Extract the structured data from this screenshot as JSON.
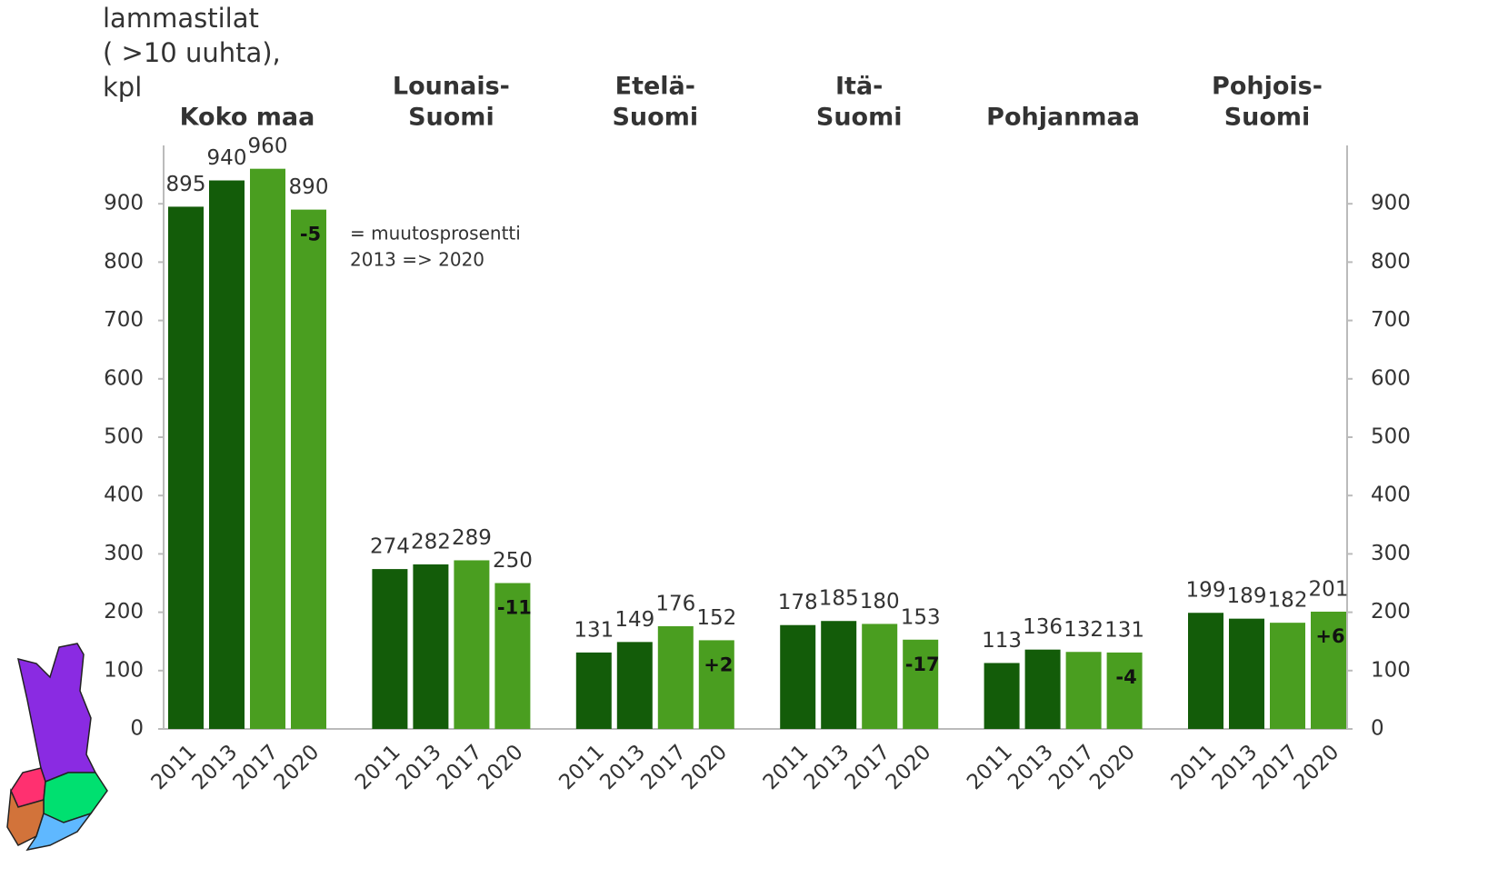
{
  "chart_data": {
    "type": "bar",
    "y_label": [
      "lammastilat",
      "( >10 uuhta),",
      "kpl"
    ],
    "categories": [
      [
        "Koko maa"
      ],
      [
        "Lounais-",
        "Suomi"
      ],
      [
        "Etelä-",
        "Suomi"
      ],
      [
        "Itä-",
        "Suomi"
      ],
      [
        "Pohjanmaa"
      ],
      [
        "Pohjois-",
        "Suomi"
      ]
    ],
    "series": [
      {
        "name": "2011",
        "color": "#135c09",
        "values": [
          895,
          274,
          131,
          178,
          113,
          199
        ]
      },
      {
        "name": "2013",
        "color": "#135c09",
        "values": [
          940,
          282,
          149,
          185,
          136,
          189
        ]
      },
      {
        "name": "2017",
        "color": "#4a9e20",
        "values": [
          960,
          289,
          176,
          180,
          132,
          182
        ]
      },
      {
        "name": "2020",
        "color": "#4a9e20",
        "values": [
          890,
          250,
          152,
          153,
          131,
          201
        ]
      }
    ],
    "changes": [
      -5,
      -11,
      2,
      -17,
      -4,
      6
    ],
    "change_labels": [
      "-5",
      "-11",
      "+2",
      "-17",
      "-4",
      "+6"
    ],
    "annotation": [
      "= muutosprosentti",
      "2013 => 2020"
    ],
    "ylim": [
      0,
      1000
    ],
    "yticks": [
      0,
      100,
      200,
      300,
      400,
      500,
      600,
      700,
      800,
      900
    ],
    "y2lim": [
      0,
      1000
    ],
    "y2ticks": [
      0,
      100,
      200,
      300,
      400,
      500,
      600,
      700,
      800,
      900
    ],
    "grid": false
  }
}
